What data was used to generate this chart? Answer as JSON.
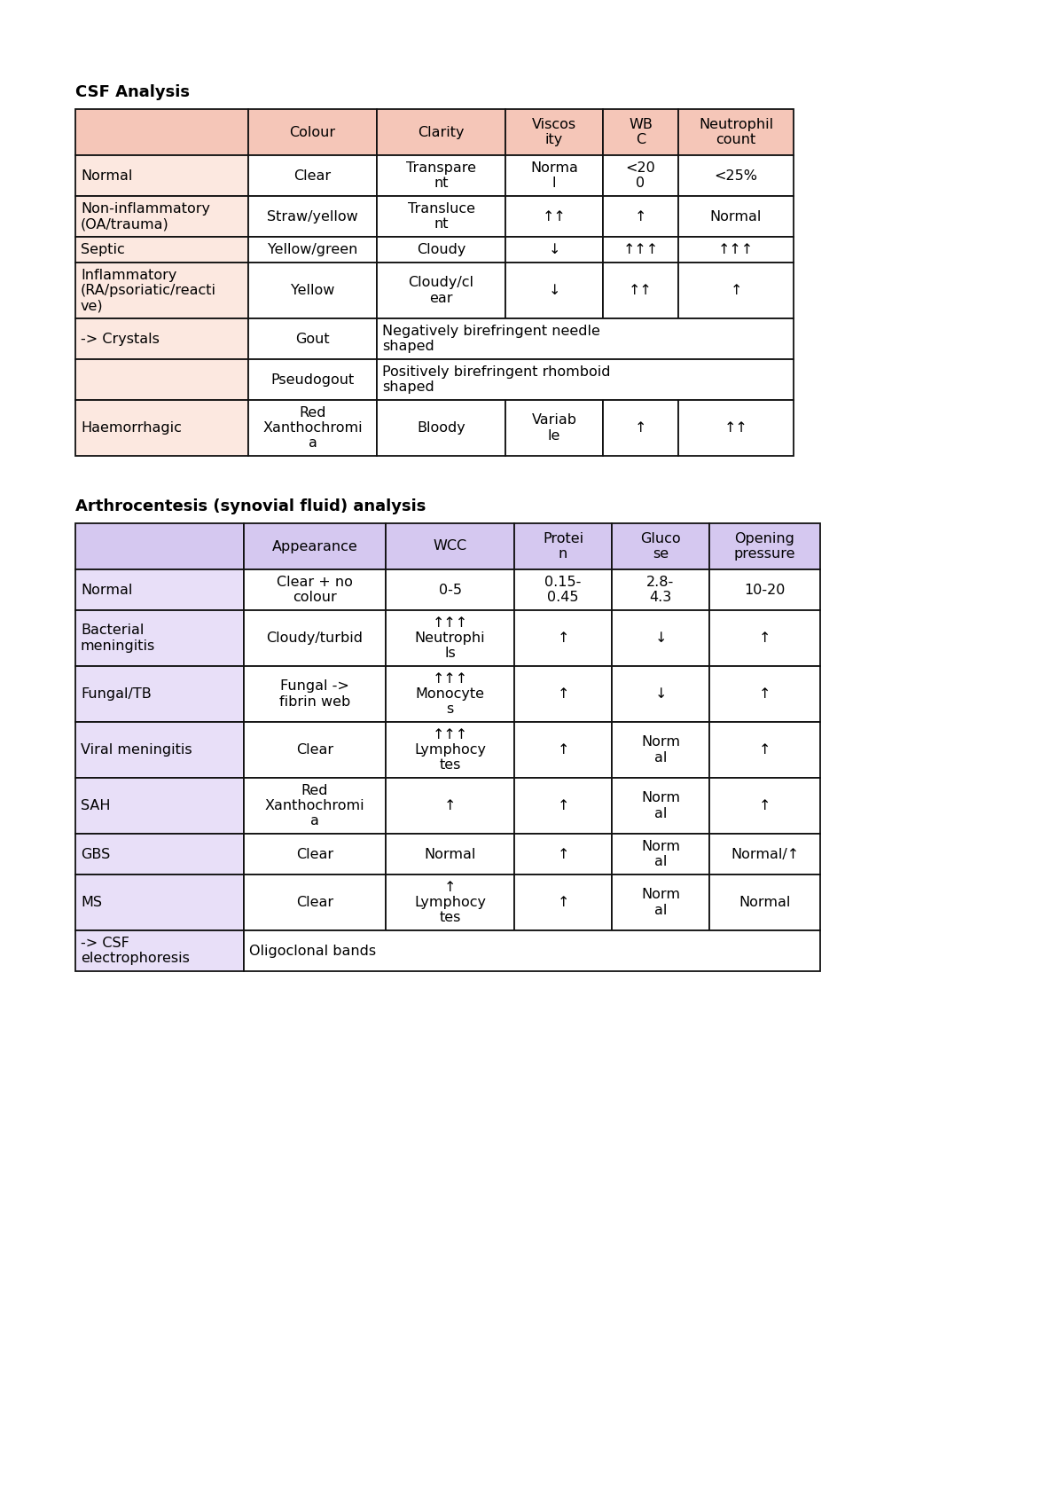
{
  "bg_color": "#ffffff",
  "csf_title": "CSF Analysis",
  "arthro_title": "Arthrocentesis (synovial fluid) analysis",
  "csf_header_bg": "#f5c6b8",
  "csf_row_bg": "#fce8e0",
  "arthro_header_bg": "#d5c8f0",
  "arthro_row_bg": "#e8dff8",
  "csf_headers": [
    "",
    "Colour",
    "Clarity",
    "Viscos\nity",
    "WB\nC",
    "Neutrophil\ncount"
  ],
  "csf_col_w": [
    195,
    145,
    145,
    110,
    85,
    130
  ],
  "csf_rows": [
    {
      "cells": [
        "Normal",
        "Clear",
        "Transpare\nnt",
        "Norma\nl",
        "<20\n0",
        "<25%"
      ],
      "span": null
    },
    {
      "cells": [
        "Non-inflammatory\n(OA/trauma)",
        "Straw/yellow",
        "Transluce\nnt",
        "↑↑",
        "↑",
        "Normal"
      ],
      "span": null
    },
    {
      "cells": [
        "Septic",
        "Yellow/green",
        "Cloudy",
        "↓",
        "↑↑↑",
        "↑↑↑"
      ],
      "span": null
    },
    {
      "cells": [
        "Inflammatory\n(RA/psoriatic/reacti\nve)",
        "Yellow",
        "Cloudy/cl\near",
        "↓",
        "↑↑",
        "↑"
      ],
      "span": null
    },
    {
      "cells": [
        "-> Crystals",
        "Gout",
        "Negatively birefringent needle\nshaped",
        "",
        "",
        ""
      ],
      "span": [
        2,
        6
      ]
    },
    {
      "cells": [
        "",
        "Pseudogout",
        "Positively birefringent rhomboid\nshaped",
        "",
        "",
        ""
      ],
      "span": [
        2,
        6
      ]
    },
    {
      "cells": [
        "Haemorrhagic",
        "Red\nXanthochromi\na",
        "Bloody",
        "Variab\nle",
        "↑",
        "↑↑"
      ],
      "span": null
    }
  ],
  "arthro_headers": [
    "",
    "Appearance",
    "WCC",
    "Protei\nn",
    "Gluco\nse",
    "Opening\npressure"
  ],
  "arthro_col_w": [
    190,
    160,
    145,
    110,
    110,
    125
  ],
  "arthro_rows": [
    {
      "cells": [
        "Normal",
        "Clear + no\ncolour",
        "0-5",
        "0.15-\n0.45",
        "2.8-\n4.3",
        "10-20"
      ],
      "span": null
    },
    {
      "cells": [
        "Bacterial\nmeningitis",
        "Cloudy/turbid",
        "↑↑↑\nNeutrophi\nls",
        "↑",
        "↓",
        "↑"
      ],
      "span": null
    },
    {
      "cells": [
        "Fungal/TB",
        "Fungal ->\nfibrin web",
        "↑↑↑\nMonocyte\ns",
        "↑",
        "↓",
        "↑"
      ],
      "span": null
    },
    {
      "cells": [
        "Viral meningitis",
        "Clear",
        "↑↑↑\nLymphocy\ntes",
        "↑",
        "Norm\nal",
        "↑"
      ],
      "span": null
    },
    {
      "cells": [
        "SAH",
        "Red\nXanthochromi\na",
        "↑",
        "↑",
        "Norm\nal",
        "↑"
      ],
      "span": null
    },
    {
      "cells": [
        "GBS",
        "Clear",
        "Normal",
        "↑",
        "Norm\nal",
        "Normal/↑"
      ],
      "span": null
    },
    {
      "cells": [
        "MS",
        "Clear",
        "↑\nLymphocy\ntes",
        "↑",
        "Norm\nal",
        "Normal"
      ],
      "span": null
    },
    {
      "cells": [
        "-> CSF\nelectrophoresis",
        "Oligoclonal bands",
        "",
        "",
        "",
        ""
      ],
      "span": [
        1,
        6
      ]
    }
  ]
}
